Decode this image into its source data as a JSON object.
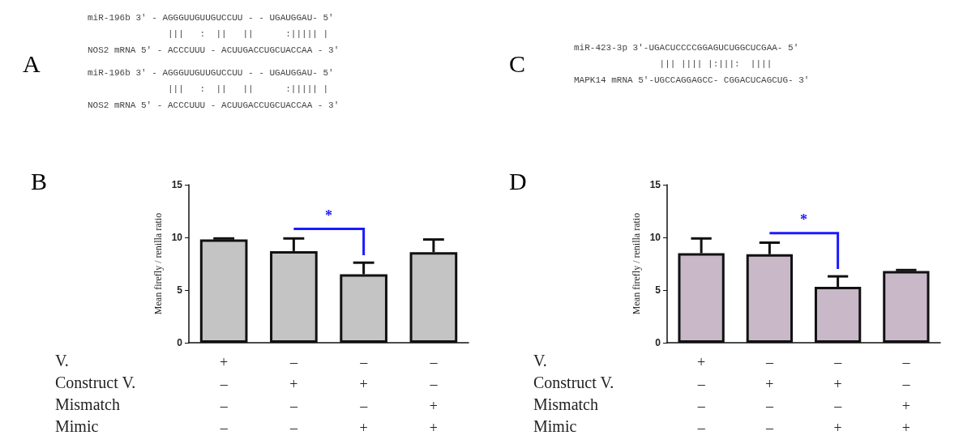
{
  "chart_data": [
    {
      "type": "other",
      "title": "A",
      "annotations": [
        "miR-196b 3' - AGGGUUGUUGUCCUU - - UGAUGGAU- 5'",
        "               |||   :  ||   ||      :||||| |",
        "NOS2 mRNA 5' - ACCCUUU - ACUUGACCUGCUACCAA - 3'",
        "miR-196b 3' - AGGGUUGUUGUCCUU - - UGAUGGAU- 5'",
        "               |||   :  ||   ||      :||||| |",
        "NOS2 mRNA 5' - ACCCUUU - ACUUGACCUGCUACCAA - 3'"
      ]
    },
    {
      "type": "other",
      "title": "C",
      "annotations": [
        "miR-423-3p 3'-UGACUCCCCGGAGUCUGGCUCGAA- 5'",
        "                ||| |||| |:|||:  ||||",
        "MAPK14 mRNA 5'-UGCCAGGAGCC- CGGACUCAGCUG- 3'"
      ]
    },
    {
      "type": "bar",
      "title": "B",
      "ylabel": "Mean firefly / renilla ratio",
      "categories": [
        "+\n–\n–\n–",
        "–\n+\n–\n–",
        "–\n+\n–\n+",
        "–\n–\n+\n+"
      ],
      "values": [
        9.8,
        8.7,
        6.5,
        8.6
      ],
      "errors": [
        [
          9.8,
          9.9
        ],
        [
          8.7,
          9.9
        ],
        [
          6.5,
          7.6
        ],
        [
          8.6,
          9.8
        ]
      ],
      "color": "#c4c4c4",
      "ylim": [
        0,
        15
      ],
      "yticks": [
        0,
        5,
        10,
        15
      ],
      "grid": false,
      "annotations": [
        "V.",
        "Construct V.",
        "Mismatch",
        "Mimic",
        "*"
      ]
    },
    {
      "type": "bar",
      "title": "D",
      "ylabel": "Mean firefly / renilla ratio",
      "categories": [
        "+\n–\n–\n–",
        "–\n+\n–\n–",
        "–\n+\n–\n+",
        "–\n–\n+\n+"
      ],
      "values": [
        8.5,
        8.4,
        5.3,
        6.8
      ],
      "errors": [
        [
          8.5,
          9.9
        ],
        [
          8.4,
          9.5
        ],
        [
          5.3,
          6.3
        ],
        [
          6.8,
          6.9
        ]
      ],
      "color": "#c8b8c8",
      "ylim": [
        0,
        15
      ],
      "yticks": [
        0,
        5,
        10,
        15
      ],
      "grid": false,
      "annotations": [
        "V.",
        "Construct V.",
        "Mismatch",
        "Mimic",
        "*"
      ]
    }
  ]
}
